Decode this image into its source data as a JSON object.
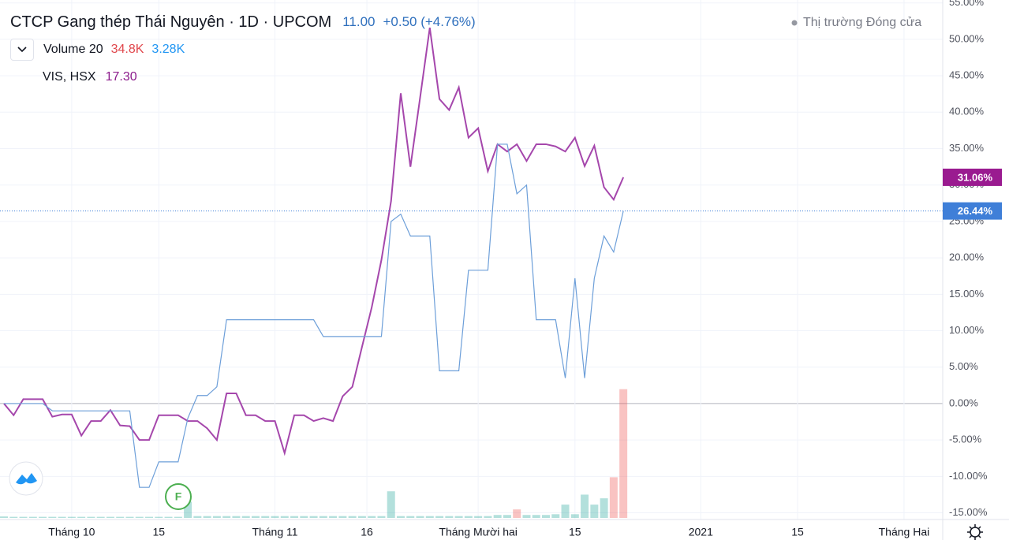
{
  "chart_data": {
    "type": "line",
    "title": "CTCP Gang thép Thái Nguyên · 1D · UPCOM",
    "price": "11.00",
    "change": "+0.50 (+4.76%)",
    "status": "Thị trường Đóng cửa",
    "event_marker": "F",
    "x": [
      0,
      1,
      2,
      3,
      4,
      5,
      6,
      7,
      8,
      9,
      10,
      11,
      12,
      13,
      14,
      15,
      16,
      17,
      18,
      19,
      20,
      21,
      22,
      23,
      24,
      25,
      26,
      27,
      28,
      29,
      30,
      31,
      32,
      33,
      34,
      35,
      36,
      37,
      38,
      39,
      40,
      41,
      42,
      43,
      44,
      45,
      46,
      47,
      48,
      49,
      50,
      51,
      52,
      53,
      54,
      55,
      56,
      57,
      58,
      59,
      60,
      61,
      62,
      63,
      64
    ],
    "xlim": [
      0,
      97
    ],
    "xticks": [
      {
        "value": 7,
        "label": "Tháng 10"
      },
      {
        "value": 16,
        "label": "15"
      },
      {
        "value": 28,
        "label": "Tháng 11"
      },
      {
        "value": 37.5,
        "label": "16"
      },
      {
        "value": 49,
        "label": "Tháng Mười hai"
      },
      {
        "value": 59,
        "label": "15"
      },
      {
        "value": 72,
        "label": "2021"
      },
      {
        "value": 82,
        "label": "15"
      },
      {
        "value": 93,
        "label": "Tháng Hai"
      }
    ],
    "ylim": [
      -15.7,
      55.4
    ],
    "yticks": [
      {
        "value": -15,
        "label": "-15.00%"
      },
      {
        "value": -10,
        "label": "-10.00%"
      },
      {
        "value": -5,
        "label": "-5.00%"
      },
      {
        "value": 0,
        "label": "0.00%"
      },
      {
        "value": 5,
        "label": "5.00%"
      },
      {
        "value": 10,
        "label": "10.00%"
      },
      {
        "value": 15,
        "label": "15.00%"
      },
      {
        "value": 20,
        "label": "20.00%"
      },
      {
        "value": 25,
        "label": "25.00%"
      },
      {
        "value": 30,
        "label": "30.00%"
      },
      {
        "value": 35,
        "label": "35.00%"
      },
      {
        "value": 40,
        "label": "40.00%"
      },
      {
        "value": 45,
        "label": "45.00%"
      },
      {
        "value": 50,
        "label": "50.00%"
      },
      {
        "value": 55,
        "label": "55.00%"
      }
    ],
    "grid": true,
    "series": [
      {
        "name": "VIS, HSX",
        "value_label": "17.30",
        "color": "#a547ac",
        "tag_color": "#9a1b90",
        "last_label": "31.06%",
        "values": [
          0,
          -1.6,
          0.6,
          0.6,
          0.6,
          -1.8,
          -1.5,
          -1.5,
          -4.4,
          -2.4,
          -2.4,
          -0.9,
          -3,
          -3.1,
          -5,
          -5,
          -1.6,
          -1.6,
          -1.6,
          -2.4,
          -2.4,
          -3.4,
          -5,
          1.4,
          1.4,
          -1.6,
          -1.6,
          -2.4,
          -2.4,
          -6.8,
          -1.6,
          -1.6,
          -2.4,
          -2,
          -2.4,
          1,
          2.3,
          7.8,
          13.2,
          19.7,
          27.8,
          42.6,
          32.5,
          42,
          51.6,
          41.8,
          40.3,
          43.4,
          36.5,
          37.8,
          31.9,
          35.6,
          34.6,
          35.6,
          33.3,
          35.6,
          35.6,
          35.3,
          34.6,
          36.5,
          32.6,
          35.4,
          29.7,
          28,
          31.06
        ]
      },
      {
        "color": "#6d9fd9",
        "tag_color": "#3f7fd8",
        "last_label": "26.44%",
        "values": [
          0,
          0,
          0,
          0,
          0,
          -1,
          -1,
          -1,
          -1,
          -1,
          -1,
          -1,
          -1,
          -1,
          -11.5,
          -11.5,
          -8,
          -8,
          -8,
          -2,
          1.1,
          1.1,
          2.3,
          11.5,
          11.5,
          11.5,
          11.5,
          11.5,
          11.5,
          11.5,
          11.5,
          11.5,
          11.5,
          9.2,
          9.2,
          9.2,
          9.2,
          9.2,
          9.2,
          9.2,
          25,
          26,
          23,
          23,
          23,
          4.5,
          4.5,
          4.5,
          18.3,
          18.3,
          18.3,
          35.6,
          35.6,
          28.8,
          30,
          11.5,
          11.5,
          11.5,
          3.5,
          17.2,
          3.5,
          17.2,
          23,
          20.8,
          26.44
        ]
      }
    ],
    "volume": {
      "name": "Volume 20",
      "last_label": "34.8K",
      "ma_label": "3.28K",
      "ylim": [
        0,
        140
      ],
      "values": [
        0.4,
        0.3,
        0.3,
        0.3,
        0.3,
        0.3,
        0.3,
        0.3,
        0.3,
        0.3,
        0.3,
        0.3,
        0.3,
        0.3,
        0.3,
        0.3,
        0.3,
        0.3,
        0.3,
        4.4,
        0.5,
        0.5,
        0.5,
        0.5,
        0.5,
        0.5,
        0.5,
        0.5,
        0.5,
        0.5,
        0.5,
        0.5,
        0.5,
        0.5,
        0.5,
        0.5,
        0.5,
        0.5,
        0.5,
        0.5,
        7.2,
        0.5,
        0.5,
        0.5,
        0.5,
        0.5,
        0.5,
        0.5,
        0.5,
        0.5,
        0.5,
        0.8,
        0.8,
        2.3,
        0.8,
        0.8,
        0.8,
        1,
        3.6,
        1,
        6.3,
        3.6,
        5.3,
        11,
        34.8
      ],
      "colors": [
        "#26a69a",
        "#26a69a",
        "#26a69a",
        "#26a69a",
        "#26a69a",
        "#26a69a",
        "#26a69a",
        "#26a69a",
        "#26a69a",
        "#26a69a",
        "#26a69a",
        "#26a69a",
        "#26a69a",
        "#26a69a",
        "#26a69a",
        "#26a69a",
        "#26a69a",
        "#26a69a",
        "#26a69a",
        "#26a69a",
        "#26a69a",
        "#26a69a",
        "#26a69a",
        "#26a69a",
        "#26a69a",
        "#26a69a",
        "#26a69a",
        "#26a69a",
        "#26a69a",
        "#26a69a",
        "#26a69a",
        "#26a69a",
        "#26a69a",
        "#26a69a",
        "#26a69a",
        "#26a69a",
        "#26a69a",
        "#26a69a",
        "#26a69a",
        "#26a69a",
        "#26a69a",
        "#26a69a",
        "#26a69a",
        "#26a69a",
        "#26a69a",
        "#26a69a",
        "#26a69a",
        "#26a69a",
        "#26a69a",
        "#26a69a",
        "#26a69a",
        "#26a69a",
        "#26a69a",
        "#ef5350",
        "#26a69a",
        "#26a69a",
        "#26a69a",
        "#26a69a",
        "#26a69a",
        "#26a69a",
        "#26a69a",
        "#26a69a",
        "#26a69a",
        "#ef5350",
        "#ef5350"
      ]
    }
  }
}
